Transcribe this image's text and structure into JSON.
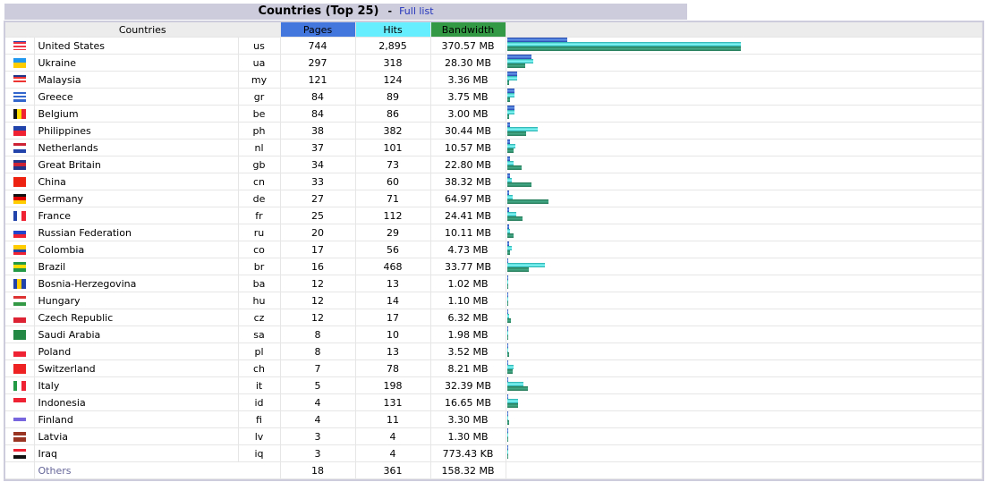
{
  "title": "Countries (Top 25)",
  "dash": "-",
  "full_list": "Full list",
  "headers": {
    "countries": "Countries",
    "pages": "Pages",
    "hits": "Hits",
    "bandwidth": "Bandwidth"
  },
  "colors": {
    "pages": "#4477dd",
    "hits": "#66eeff",
    "bandwidth": "#339944"
  },
  "max_hits": 2895,
  "max_bandwidth_mb": 370.57,
  "rows": [
    {
      "name": "United States",
      "code": "us",
      "pages": "744",
      "hits": "2,895",
      "bandwidth": "370.57 MB",
      "p": 744,
      "h": 2895,
      "bw": 370.57,
      "flag": {
        "dir": "h",
        "colors": [
          "#2244aa",
          "#ee3344",
          "#ffffff",
          "#ee3344",
          "#ffffff",
          "#ee3344"
        ]
      }
    },
    {
      "name": "Ukraine",
      "code": "ua",
      "pages": "297",
      "hits": "318",
      "bandwidth": "28.30 MB",
      "p": 297,
      "h": 318,
      "bw": 28.3,
      "flag": {
        "dir": "h",
        "colors": [
          "#2299ee",
          "#ffcc00"
        ]
      }
    },
    {
      "name": "Malaysia",
      "code": "my",
      "pages": "121",
      "hits": "124",
      "bandwidth": "3.36 MB",
      "p": 121,
      "h": 124,
      "bw": 3.36,
      "flag": {
        "dir": "h",
        "colors": [
          "#223388",
          "#ee3333",
          "#ffffff",
          "#ee3333",
          "#ffffff"
        ]
      }
    },
    {
      "name": "Greece",
      "code": "gr",
      "pages": "84",
      "hits": "89",
      "bandwidth": "3.75 MB",
      "p": 84,
      "h": 89,
      "bw": 3.75,
      "flag": {
        "dir": "h",
        "colors": [
          "#3366cc",
          "#ffffff",
          "#3366cc",
          "#ffffff",
          "#3366cc"
        ]
      }
    },
    {
      "name": "Belgium",
      "code": "be",
      "pages": "84",
      "hits": "86",
      "bandwidth": "3.00 MB",
      "p": 84,
      "h": 86,
      "bw": 3.0,
      "flag": {
        "dir": "v",
        "colors": [
          "#111111",
          "#ffdd00",
          "#ee2233"
        ]
      }
    },
    {
      "name": "Philippines",
      "code": "ph",
      "pages": "38",
      "hits": "382",
      "bandwidth": "30.44 MB",
      "p": 38,
      "h": 382,
      "bw": 30.44,
      "flag": {
        "dir": "h",
        "colors": [
          "#2244aa",
          "#ee2233"
        ]
      }
    },
    {
      "name": "Netherlands",
      "code": "nl",
      "pages": "37",
      "hits": "101",
      "bandwidth": "10.57 MB",
      "p": 37,
      "h": 101,
      "bw": 10.57,
      "flag": {
        "dir": "h",
        "colors": [
          "#cc2233",
          "#ffffff",
          "#2244aa"
        ]
      }
    },
    {
      "name": "Great Britain",
      "code": "gb",
      "pages": "34",
      "hits": "73",
      "bandwidth": "22.80 MB",
      "p": 34,
      "h": 73,
      "bw": 22.8,
      "flag": {
        "dir": "h",
        "colors": [
          "#223388",
          "#cc2233",
          "#223388"
        ]
      }
    },
    {
      "name": "China",
      "code": "cn",
      "pages": "33",
      "hits": "60",
      "bandwidth": "38.32 MB",
      "p": 33,
      "h": 60,
      "bw": 38.32,
      "flag": {
        "dir": "h",
        "colors": [
          "#ee2211"
        ]
      }
    },
    {
      "name": "Germany",
      "code": "de",
      "pages": "27",
      "hits": "71",
      "bandwidth": "64.97 MB",
      "p": 27,
      "h": 71,
      "bw": 64.97,
      "flag": {
        "dir": "h",
        "colors": [
          "#111111",
          "#dd0000",
          "#ffcc00"
        ]
      }
    },
    {
      "name": "France",
      "code": "fr",
      "pages": "25",
      "hits": "112",
      "bandwidth": "24.41 MB",
      "p": 25,
      "h": 112,
      "bw": 24.41,
      "flag": {
        "dir": "v",
        "colors": [
          "#2244aa",
          "#ffffff",
          "#ee2233"
        ]
      }
    },
    {
      "name": "Russian Federation",
      "code": "ru",
      "pages": "20",
      "hits": "29",
      "bandwidth": "10.11 MB",
      "p": 20,
      "h": 29,
      "bw": 10.11,
      "flag": {
        "dir": "h",
        "colors": [
          "#ffffff",
          "#2244cc",
          "#ee2233"
        ]
      }
    },
    {
      "name": "Colombia",
      "code": "co",
      "pages": "17",
      "hits": "56",
      "bandwidth": "4.73 MB",
      "p": 17,
      "h": 56,
      "bw": 4.73,
      "flag": {
        "dir": "h",
        "colors": [
          "#ffcc00",
          "#ffcc00",
          "#2244aa",
          "#ee2233"
        ]
      }
    },
    {
      "name": "Brazil",
      "code": "br",
      "pages": "16",
      "hits": "468",
      "bandwidth": "33.77 MB",
      "p": 16,
      "h": 468,
      "bw": 33.77,
      "flag": {
        "dir": "h",
        "colors": [
          "#229944",
          "#ffdd00",
          "#229944"
        ]
      }
    },
    {
      "name": "Bosnia-Herzegovina",
      "code": "ba",
      "pages": "12",
      "hits": "13",
      "bandwidth": "1.02 MB",
      "p": 12,
      "h": 13,
      "bw": 1.02,
      "flag": {
        "dir": "v",
        "colors": [
          "#2244aa",
          "#ffcc00",
          "#2244aa"
        ]
      }
    },
    {
      "name": "Hungary",
      "code": "hu",
      "pages": "12",
      "hits": "14",
      "bandwidth": "1.10 MB",
      "p": 12,
      "h": 14,
      "bw": 1.1,
      "flag": {
        "dir": "h",
        "colors": [
          "#dd3333",
          "#ffffff",
          "#339944"
        ]
      }
    },
    {
      "name": "Czech Republic",
      "code": "cz",
      "pages": "12",
      "hits": "17",
      "bandwidth": "6.32 MB",
      "p": 12,
      "h": 17,
      "bw": 6.32,
      "flag": {
        "dir": "h",
        "colors": [
          "#ffffff",
          "#dd2233"
        ]
      }
    },
    {
      "name": "Saudi Arabia",
      "code": "sa",
      "pages": "8",
      "hits": "10",
      "bandwidth": "1.98 MB",
      "p": 8,
      "h": 10,
      "bw": 1.98,
      "flag": {
        "dir": "h",
        "colors": [
          "#228844"
        ]
      }
    },
    {
      "name": "Poland",
      "code": "pl",
      "pages": "8",
      "hits": "13",
      "bandwidth": "3.52 MB",
      "p": 8,
      "h": 13,
      "bw": 3.52,
      "flag": {
        "dir": "h",
        "colors": [
          "#ffffff",
          "#ee2233"
        ]
      }
    },
    {
      "name": "Switzerland",
      "code": "ch",
      "pages": "7",
      "hits": "78",
      "bandwidth": "8.21 MB",
      "p": 7,
      "h": 78,
      "bw": 8.21,
      "flag": {
        "dir": "h",
        "colors": [
          "#ee2222"
        ]
      }
    },
    {
      "name": "Italy",
      "code": "it",
      "pages": "5",
      "hits": "198",
      "bandwidth": "32.39 MB",
      "p": 5,
      "h": 198,
      "bw": 32.39,
      "flag": {
        "dir": "v",
        "colors": [
          "#229944",
          "#ffffff",
          "#ee2233"
        ]
      }
    },
    {
      "name": "Indonesia",
      "code": "id",
      "pages": "4",
      "hits": "131",
      "bandwidth": "16.65 MB",
      "p": 4,
      "h": 131,
      "bw": 16.65,
      "flag": {
        "dir": "h",
        "colors": [
          "#ee2233",
          "#ffffff"
        ]
      }
    },
    {
      "name": "Finland",
      "code": "fi",
      "pages": "4",
      "hits": "11",
      "bandwidth": "3.30 MB",
      "p": 4,
      "h": 11,
      "bw": 3.3,
      "flag": {
        "dir": "h",
        "colors": [
          "#ffffff",
          "#7766dd",
          "#ffffff"
        ]
      }
    },
    {
      "name": "Latvia",
      "code": "lv",
      "pages": "3",
      "hits": "4",
      "bandwidth": "1.30 MB",
      "p": 3,
      "h": 4,
      "bw": 1.3,
      "flag": {
        "dir": "h",
        "colors": [
          "#993322",
          "#993322",
          "#ffffff",
          "#993322",
          "#993322"
        ]
      }
    },
    {
      "name": "Iraq",
      "code": "iq",
      "pages": "3",
      "hits": "4",
      "bandwidth": "773.43 KB",
      "p": 3,
      "h": 4,
      "bw": 0.755,
      "flag": {
        "dir": "h",
        "colors": [
          "#ee2233",
          "#ffffff",
          "#111111"
        ]
      }
    }
  ],
  "others": {
    "label": "Others",
    "pages": "18",
    "hits": "361",
    "bandwidth": "158.32 MB"
  }
}
